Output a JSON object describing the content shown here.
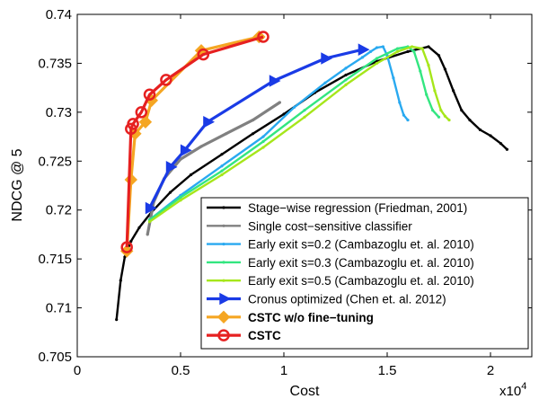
{
  "chart_data": {
    "type": "line",
    "xlabel": "Cost",
    "ylabel": "NDCG @ 5",
    "x_multiplier_label": "x10",
    "x_multiplier_exp": "4",
    "xlim": [
      0,
      2.2
    ],
    "ylim": [
      0.705,
      0.74
    ],
    "x_ticks": [
      0,
      0.5,
      1,
      1.5,
      2
    ],
    "x_tick_labels": [
      "0",
      "0.5",
      "1",
      "1.5",
      "2"
    ],
    "y_ticks": [
      0.705,
      0.71,
      0.715,
      0.72,
      0.725,
      0.73,
      0.735,
      0.74
    ],
    "y_tick_labels": [
      "0.705",
      "0.71",
      "0.715",
      "0.72",
      "0.725",
      "0.73",
      "0.735",
      "0.74"
    ],
    "grid": false,
    "legend_position": "bottom-right",
    "series": [
      {
        "name": "Stage−wise regression (Friedman, 2001)",
        "color": "#000000",
        "marker": "dot",
        "bold": false,
        "x": [
          0.19,
          0.21,
          0.23,
          0.26,
          0.3,
          0.36,
          0.45,
          0.55,
          0.7,
          0.85,
          1.0,
          1.15,
          1.3,
          1.45,
          1.6,
          1.7,
          1.75,
          1.78,
          1.82,
          1.86,
          1.9,
          1.95,
          2.0,
          2.05,
          2.08
        ],
        "y": [
          0.7088,
          0.7128,
          0.7152,
          0.7168,
          0.7182,
          0.7198,
          0.7218,
          0.7236,
          0.7257,
          0.7278,
          0.7298,
          0.732,
          0.7338,
          0.7352,
          0.7362,
          0.7367,
          0.7358,
          0.7344,
          0.7322,
          0.7302,
          0.7292,
          0.7282,
          0.7276,
          0.7268,
          0.7262
        ]
      },
      {
        "name": "Single cost−sensitive classifier",
        "color": "#808080",
        "marker": "dot",
        "bold": false,
        "x": [
          0.34,
          0.37,
          0.42,
          0.5,
          0.6,
          0.72,
          0.85,
          0.98
        ],
        "y": [
          0.7175,
          0.7208,
          0.7232,
          0.7252,
          0.7265,
          0.7278,
          0.7292,
          0.731
        ]
      },
      {
        "name": "Early exit s=0.2 (Cambazoglu et. al. 2010)",
        "color": "#29a9f0",
        "marker": "dot",
        "bold": false,
        "x": [
          0.35,
          0.5,
          0.7,
          0.9,
          1.05,
          1.2,
          1.3,
          1.38,
          1.42,
          1.45,
          1.48,
          1.5,
          1.53,
          1.56,
          1.58,
          1.6
        ],
        "y": [
          0.719,
          0.7215,
          0.7245,
          0.7275,
          0.7305,
          0.733,
          0.7345,
          0.7356,
          0.7362,
          0.7366,
          0.7367,
          0.7358,
          0.7335,
          0.731,
          0.7297,
          0.7292
        ]
      },
      {
        "name": "Early exit s=0.3 (Cambazoglu et. al. 2010)",
        "color": "#33e680",
        "marker": "dot",
        "bold": false,
        "x": [
          0.35,
          0.5,
          0.7,
          0.9,
          1.1,
          1.3,
          1.45,
          1.55,
          1.6,
          1.63,
          1.66,
          1.69,
          1.72,
          1.75
        ],
        "y": [
          0.719,
          0.7213,
          0.724,
          0.727,
          0.7302,
          0.7333,
          0.7355,
          0.7365,
          0.7367,
          0.7362,
          0.7342,
          0.7318,
          0.7302,
          0.7295
        ]
      },
      {
        "name": "Early exit s=0.5 (Cambazoglu et. al. 2010)",
        "color": "#a6e61a",
        "marker": "dot",
        "bold": false,
        "x": [
          0.35,
          0.5,
          0.7,
          0.9,
          1.1,
          1.3,
          1.45,
          1.55,
          1.62,
          1.67,
          1.7,
          1.73,
          1.76,
          1.78,
          1.8
        ],
        "y": [
          0.7188,
          0.721,
          0.7236,
          0.7264,
          0.7295,
          0.7328,
          0.735,
          0.7362,
          0.7367,
          0.7365,
          0.7348,
          0.7322,
          0.7302,
          0.7296,
          0.7292
        ]
      },
      {
        "name": "Cronus optimized (Chen et. al. 2012)",
        "color": "#1a3be6",
        "marker": "triangle",
        "bold": false,
        "x": [
          0.35,
          0.45,
          0.52,
          0.63,
          0.95,
          1.2,
          1.38
        ],
        "y": [
          0.7202,
          0.7244,
          0.7261,
          0.729,
          0.7332,
          0.7355,
          0.7364
        ]
      },
      {
        "name": "CSTC w/o fine−tuning",
        "color": "#f5a623",
        "marker": "diamond",
        "bold": true,
        "x": [
          0.24,
          0.26,
          0.28,
          0.33,
          0.36,
          0.6,
          0.88
        ],
        "y": [
          0.7158,
          0.7231,
          0.7278,
          0.729,
          0.7312,
          0.7363,
          0.7377
        ]
      },
      {
        "name": "CSTC",
        "color": "#e62020",
        "marker": "circle",
        "bold": true,
        "x": [
          0.24,
          0.26,
          0.27,
          0.31,
          0.35,
          0.43,
          0.61,
          0.9
        ],
        "y": [
          0.7162,
          0.7283,
          0.7288,
          0.73,
          0.7318,
          0.7333,
          0.7359,
          0.7377
        ]
      }
    ]
  }
}
